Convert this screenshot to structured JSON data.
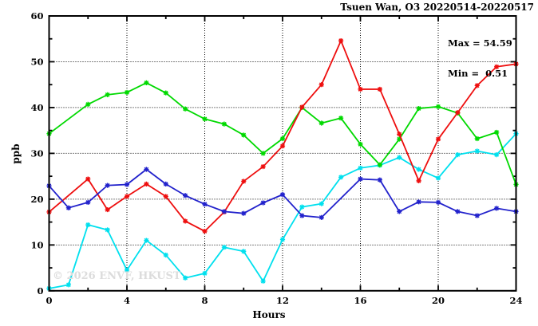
{
  "header": {
    "title": "Tsuen Wan, O3 20220514-20220517"
  },
  "stats": {
    "max_label": "Max = 54.59",
    "min_label": "Min =  0.51"
  },
  "watermark": "© 2026 ENVF, HKUST",
  "chart_data": {
    "type": "line",
    "title": "Tsuen Wan, O3 20220514-20220517",
    "xlabel": "Hours",
    "ylabel": "ppb",
    "xlim": [
      0,
      24
    ],
    "ylim": [
      0,
      60
    ],
    "grid": true,
    "grid_style": "dotted",
    "legend": "none",
    "stats": {
      "max": 54.59,
      "min": 0.51
    },
    "xticks_major": [
      0,
      4,
      8,
      12,
      16,
      20,
      24
    ],
    "xticks_minor": [
      2,
      6,
      10,
      14,
      18,
      22
    ],
    "yticks_major": [
      0,
      10,
      20,
      30,
      40,
      50,
      60
    ],
    "yticks_minor": [
      5,
      15,
      25,
      35,
      45,
      55
    ],
    "x": [
      0,
      1,
      2,
      3,
      4,
      5,
      6,
      7,
      8,
      9,
      10,
      11,
      12,
      13,
      14,
      15,
      16,
      17,
      18,
      19,
      20,
      21,
      22,
      23,
      24
    ],
    "series": [
      {
        "name": "series-cyan",
        "color": "#00e0ee",
        "values": [
          0.51,
          1.3,
          14.4,
          13.3,
          4.5,
          11.0,
          7.8,
          2.8,
          3.8,
          9.5,
          8.6,
          2.1,
          11.2,
          18.3,
          19.0,
          24.8,
          26.8,
          27.4,
          29.1,
          26.5,
          24.6,
          29.7,
          30.5,
          29.7,
          34.3
        ]
      },
      {
        "name": "series-green",
        "color": "#00d900",
        "values": [
          34.3,
          null,
          40.7,
          42.8,
          43.3,
          45.4,
          43.2,
          39.7,
          37.5,
          36.4,
          34.0,
          30.0,
          33.2,
          40.0,
          36.6,
          37.7,
          32.0,
          27.5,
          33.1,
          39.8,
          40.2,
          38.8,
          33.2,
          34.6,
          23.2
        ]
      },
      {
        "name": "series-red",
        "color": "#ee0e0e",
        "values": [
          17.2,
          null,
          24.4,
          17.7,
          20.6,
          23.3,
          20.6,
          15.2,
          13.0,
          17.2,
          23.9,
          27.1,
          31.6,
          40.1,
          45.0,
          54.59,
          44.0,
          44.0,
          34.2,
          24.0,
          33.1,
          38.9,
          44.8,
          48.9,
          49.5
        ]
      },
      {
        "name": "series-blue",
        "color": "#2222cc",
        "values": [
          22.9,
          18.1,
          19.3,
          23.0,
          23.2,
          26.5,
          23.3,
          20.8,
          18.9,
          17.3,
          16.9,
          19.2,
          21.0,
          16.4,
          16.0,
          null,
          24.4,
          24.2,
          17.3,
          19.4,
          19.3,
          17.3,
          16.4,
          18.0,
          17.3
        ]
      }
    ]
  }
}
